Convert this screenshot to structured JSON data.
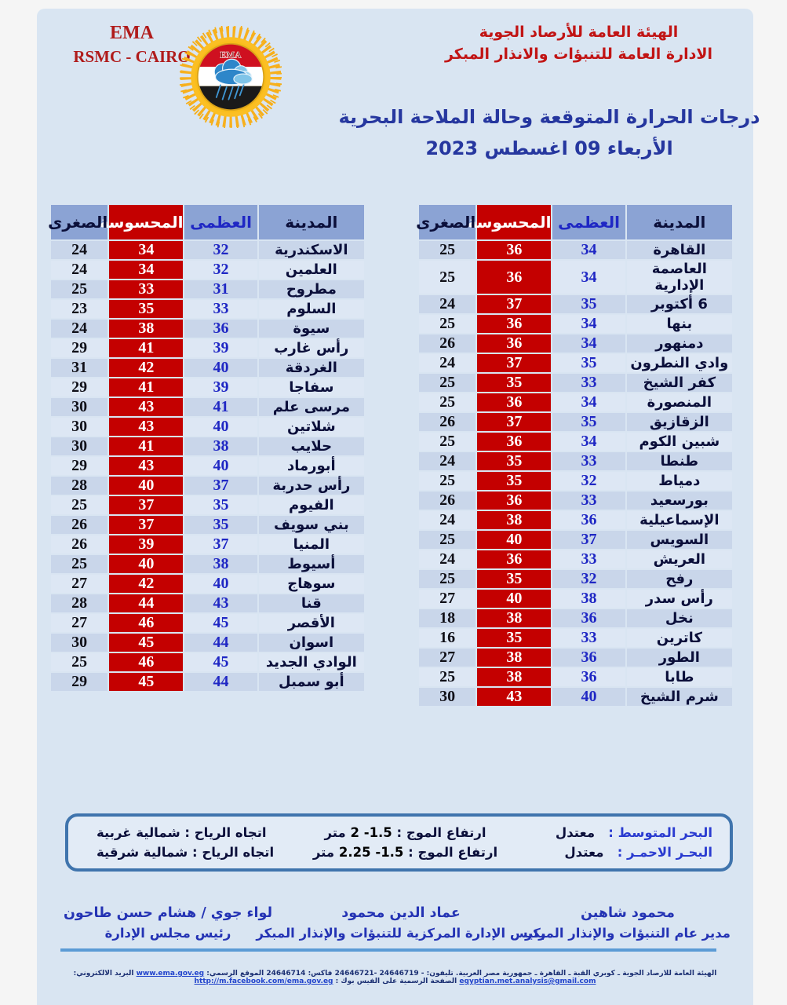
{
  "header": {
    "org_abbr": "EMA",
    "org_rsmc": "RSMC - CAIRO",
    "agency_line1": "الهيئة العامة للأرصاد الجوية",
    "agency_line2": "الادارة العامة للتنبؤات والانذار المبكر",
    "title": "درجات الحرارة المتوقعة وحالة الملاحة البحرية",
    "date": "الأربعاء 09  اغسطس 2023"
  },
  "logo": {
    "text": "EMA"
  },
  "table_headers": {
    "city": "المدينة",
    "max": "العظمى",
    "feels": "المحسوسة",
    "min": "الصغرى"
  },
  "tables": {
    "right": {
      "rows": [
        {
          "city": "القاهرة",
          "max": 34,
          "feels": 36,
          "min": 25
        },
        {
          "city": "العاصمة الإدارية",
          "max": 34,
          "feels": 36,
          "min": 25
        },
        {
          "city": "6 أكتوبر",
          "max": 35,
          "feels": 37,
          "min": 24
        },
        {
          "city": "بنها",
          "max": 34,
          "feels": 36,
          "min": 25
        },
        {
          "city": "دمنهور",
          "max": 34,
          "feels": 36,
          "min": 26
        },
        {
          "city": "وادي النطرون",
          "max": 35,
          "feels": 37,
          "min": 24
        },
        {
          "city": "كفر الشيخ",
          "max": 33,
          "feels": 35,
          "min": 25
        },
        {
          "city": "المنصورة",
          "max": 34,
          "feels": 36,
          "min": 25
        },
        {
          "city": "الزقازيق",
          "max": 35,
          "feels": 37,
          "min": 26
        },
        {
          "city": "شبين الكوم",
          "max": 34,
          "feels": 36,
          "min": 25
        },
        {
          "city": "طنطا",
          "max": 33,
          "feels": 35,
          "min": 24
        },
        {
          "city": "دمياط",
          "max": 32,
          "feels": 35,
          "min": 25
        },
        {
          "city": "بورسعيد",
          "max": 33,
          "feels": 36,
          "min": 26
        },
        {
          "city": "الإسماعيلية",
          "max": 36,
          "feels": 38,
          "min": 24
        },
        {
          "city": "السويس",
          "max": 37,
          "feels": 40,
          "min": 25
        },
        {
          "city": "العريش",
          "max": 33,
          "feels": 36,
          "min": 24
        },
        {
          "city": "رفح",
          "max": 32,
          "feels": 35,
          "min": 25
        },
        {
          "city": "رأس سدر",
          "max": 38,
          "feels": 40,
          "min": 27
        },
        {
          "city": "نخل",
          "max": 36,
          "feels": 38,
          "min": 18
        },
        {
          "city": "كاترين",
          "max": 33,
          "feels": 35,
          "min": 16
        },
        {
          "city": "الطور",
          "max": 36,
          "feels": 38,
          "min": 27
        },
        {
          "city": "طابا",
          "max": 36,
          "feels": 38,
          "min": 25
        },
        {
          "city": "شرم الشيخ",
          "max": 40,
          "feels": 43,
          "min": 30
        }
      ]
    },
    "left": {
      "rows": [
        {
          "city": "الاسكندرية",
          "max": 32,
          "feels": 34,
          "min": 24
        },
        {
          "city": "العلمين",
          "max": 32,
          "feels": 34,
          "min": 24
        },
        {
          "city": "مطروح",
          "max": 31,
          "feels": 33,
          "min": 25
        },
        {
          "city": "السلوم",
          "max": 33,
          "feels": 35,
          "min": 23
        },
        {
          "city": "سيوة",
          "max": 36,
          "feels": 38,
          "min": 24
        },
        {
          "city": "رأس غارب",
          "max": 39,
          "feels": 41,
          "min": 29
        },
        {
          "city": "الغردقة",
          "max": 40,
          "feels": 42,
          "min": 31
        },
        {
          "city": "سفاجا",
          "max": 39,
          "feels": 41,
          "min": 29
        },
        {
          "city": "مرسى علم",
          "max": 41,
          "feels": 43,
          "min": 30
        },
        {
          "city": "شلاتين",
          "max": 40,
          "feels": 43,
          "min": 30
        },
        {
          "city": "حلايب",
          "max": 38,
          "feels": 41,
          "min": 30
        },
        {
          "city": "أبورماد",
          "max": 40,
          "feels": 43,
          "min": 29
        },
        {
          "city": "رأس حدربة",
          "max": 37,
          "feels": 40,
          "min": 28
        },
        {
          "city": "الفيوم",
          "max": 35,
          "feels": 37,
          "min": 25
        },
        {
          "city": "بني سويف",
          "max": 35,
          "feels": 37,
          "min": 26
        },
        {
          "city": "المنيا",
          "max": 37,
          "feels": 39,
          "min": 26
        },
        {
          "city": "أسيوط",
          "max": 38,
          "feels": 40,
          "min": 25
        },
        {
          "city": "سوهاج",
          "max": 40,
          "feels": 42,
          "min": 27
        },
        {
          "city": "قنا",
          "max": 43,
          "feels": 44,
          "min": 28
        },
        {
          "city": "الأقصر",
          "max": 45,
          "feels": 46,
          "min": 27
        },
        {
          "city": "اسوان",
          "max": 44,
          "feels": 45,
          "min": 30
        },
        {
          "city": "الوادي الجديد",
          "max": 45,
          "feels": 46,
          "min": 25
        },
        {
          "city": "أبو سمبل",
          "max": 44,
          "feels": 45,
          "min": 29
        }
      ]
    }
  },
  "marine": {
    "rows": [
      {
        "sea_label": "البحر المتوسط :",
        "sea_state": "معتدل",
        "wave_label": "ارتفاع الموج :",
        "wave_value": "1.5- 2",
        "wave_unit": "متر",
        "wind_label": "اتجاه الرياح :",
        "wind_value": "شمالية غربية"
      },
      {
        "sea_label": "البحـر الاحمـر :",
        "sea_state": "معتدل",
        "wave_label": "ارتفاع الموج :",
        "wave_value": "1.5- 2.25",
        "wave_unit": "متر",
        "wind_label": "اتجاه الرياح :",
        "wind_value": "شمالية شرقية"
      }
    ]
  },
  "signatures": [
    {
      "name": "محمود شاهين",
      "title": "مدير عام التنبؤات والإنذار المبكر"
    },
    {
      "name": "عماد الدين محمود",
      "title": "رئيس الإدارة المركزية للتنبؤات والإنذار المبكر"
    },
    {
      "name": "لواء جوي / هشام حسن طاحون",
      "title": "رئيس مجلس الإدارة"
    }
  ],
  "footer": {
    "text1": "الهيئة العامة للارصاد الجوية ـ كوبري القبة ـ القاهرة ـ جمهورية مصر العربية. تليفون: - 24646719 -24646721 فاكس: 24646714 الموقع الرسمي:",
    "link_site": "www.ema.gov.eg",
    "text2": " البريد الالكتروني: ",
    "link_email": "egyptian.met.analysis@gmail.com",
    "text3": " الصفحة الرسمية على الفيس بوك : ",
    "link_facebook": "http://m.facebook.com/ema.gov.eg"
  },
  "colors": {
    "red": "#c40000",
    "header-bg": "#8ba3d4",
    "content-bg": "#d9e5f2",
    "blue-num": "#1f27c4",
    "title-blue": "#26379f",
    "dark-red": "#b01b1b",
    "sig-blue": "#2433b4",
    "rule-blue": "#5b9bd5",
    "box-border": "#3f74ad"
  }
}
